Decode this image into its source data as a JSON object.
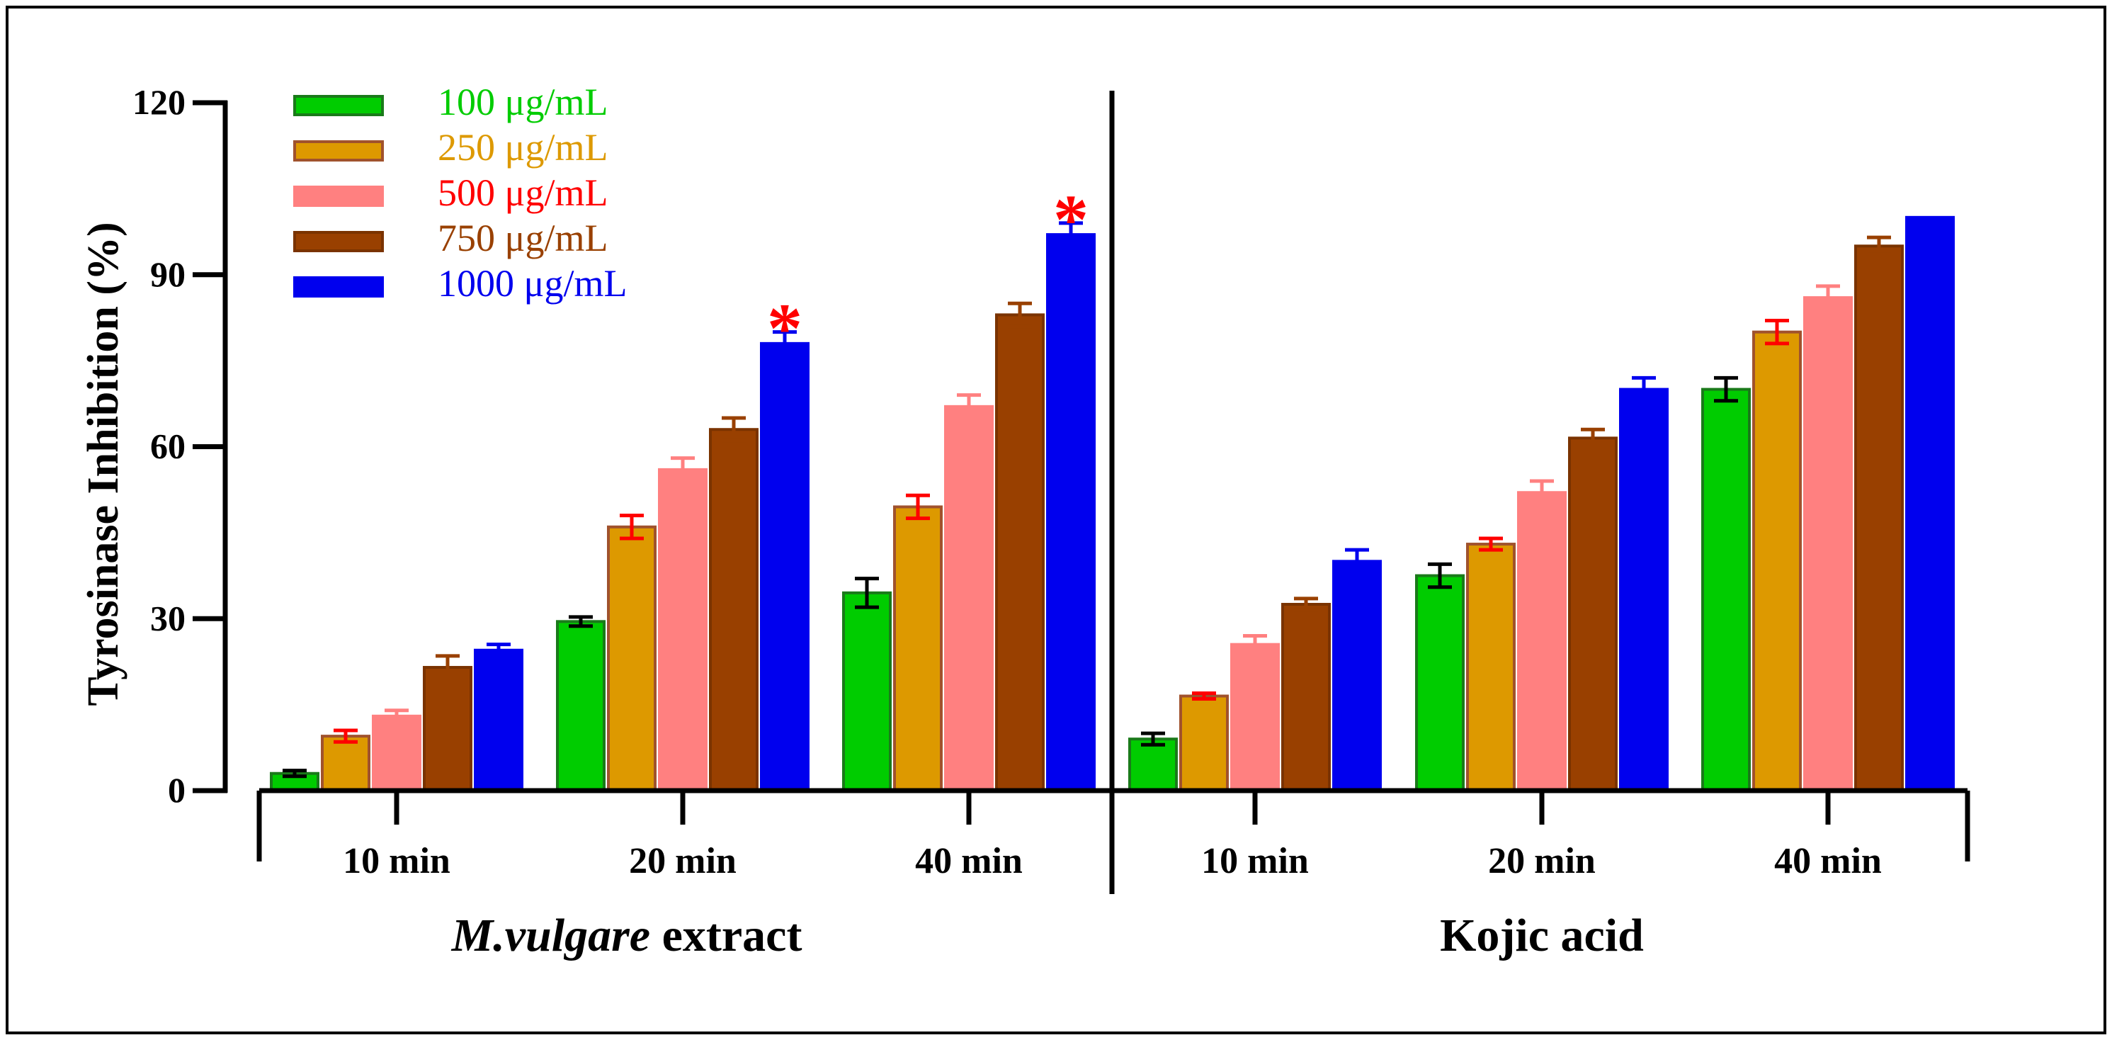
{
  "chart_data": {
    "type": "bar",
    "ylabel": "Tyrosinase Inhibition (%)",
    "ylim": [
      0,
      120
    ],
    "yticks": [
      0,
      30,
      60,
      90,
      120
    ],
    "series": [
      {
        "name": "100 μg/mL",
        "color": "#00cc00",
        "edge": "#1a7a1a",
        "errcolor": "#000000"
      },
      {
        "name": "250 μg/mL",
        "color": "#dd9900",
        "edge": "#a0522d",
        "errcolor": "#ff0000"
      },
      {
        "name": "500 μg/mL",
        "color": "#ff8080",
        "edge": "#ff8080",
        "errcolor": "#ff8080"
      },
      {
        "name": "750 μg/mL",
        "color": "#994000",
        "edge": "#7a3300",
        "errcolor": "#994000"
      },
      {
        "name": "1000 μg/mL",
        "color": "#0000ee",
        "edge": "#0000ee",
        "errcolor": "#0000ee"
      }
    ],
    "groups": [
      {
        "label": "extract",
        "label_italic": "M.vulgare",
        "categories": [
          {
            "label": "10 min",
            "values": [
              3.0,
              9.5,
              13.0,
              21.5,
              24.5
            ],
            "errors": [
              0.5,
              1.0,
              1.0,
              2.0,
              1.0
            ],
            "stars": [
              false,
              false,
              false,
              false,
              false
            ]
          },
          {
            "label": "20 min",
            "values": [
              29.5,
              46.0,
              56.0,
              63.0,
              78.0
            ],
            "errors": [
              0.8,
              2.0,
              2.0,
              2.0,
              2.0
            ],
            "stars": [
              false,
              false,
              false,
              false,
              true
            ]
          },
          {
            "label": "40 min",
            "values": [
              34.5,
              49.5,
              67.0,
              83.0,
              97.0
            ],
            "errors": [
              2.5,
              2.0,
              2.0,
              2.0,
              2.0
            ],
            "stars": [
              false,
              false,
              false,
              false,
              true
            ]
          }
        ]
      },
      {
        "label": "Kojic acid",
        "label_italic": "",
        "categories": [
          {
            "label": "10 min",
            "values": [
              9.0,
              16.5,
              25.5,
              32.5,
              40.0
            ],
            "errors": [
              1.0,
              0.5,
              1.5,
              1.0,
              2.0
            ],
            "stars": [
              false,
              false,
              false,
              false,
              false
            ]
          },
          {
            "label": "20 min",
            "values": [
              37.5,
              43.0,
              52.0,
              61.5,
              70.0
            ],
            "errors": [
              2.0,
              1.0,
              2.0,
              1.5,
              2.0
            ],
            "stars": [
              false,
              false,
              false,
              false,
              false
            ]
          },
          {
            "label": "40 min",
            "values": [
              70.0,
              80.0,
              86.0,
              95.0,
              100.0
            ],
            "errors": [
              2.0,
              2.0,
              2.0,
              1.5,
              0.0
            ],
            "stars": [
              false,
              false,
              false,
              false,
              false
            ]
          }
        ]
      }
    ],
    "significance_marker": "*"
  }
}
